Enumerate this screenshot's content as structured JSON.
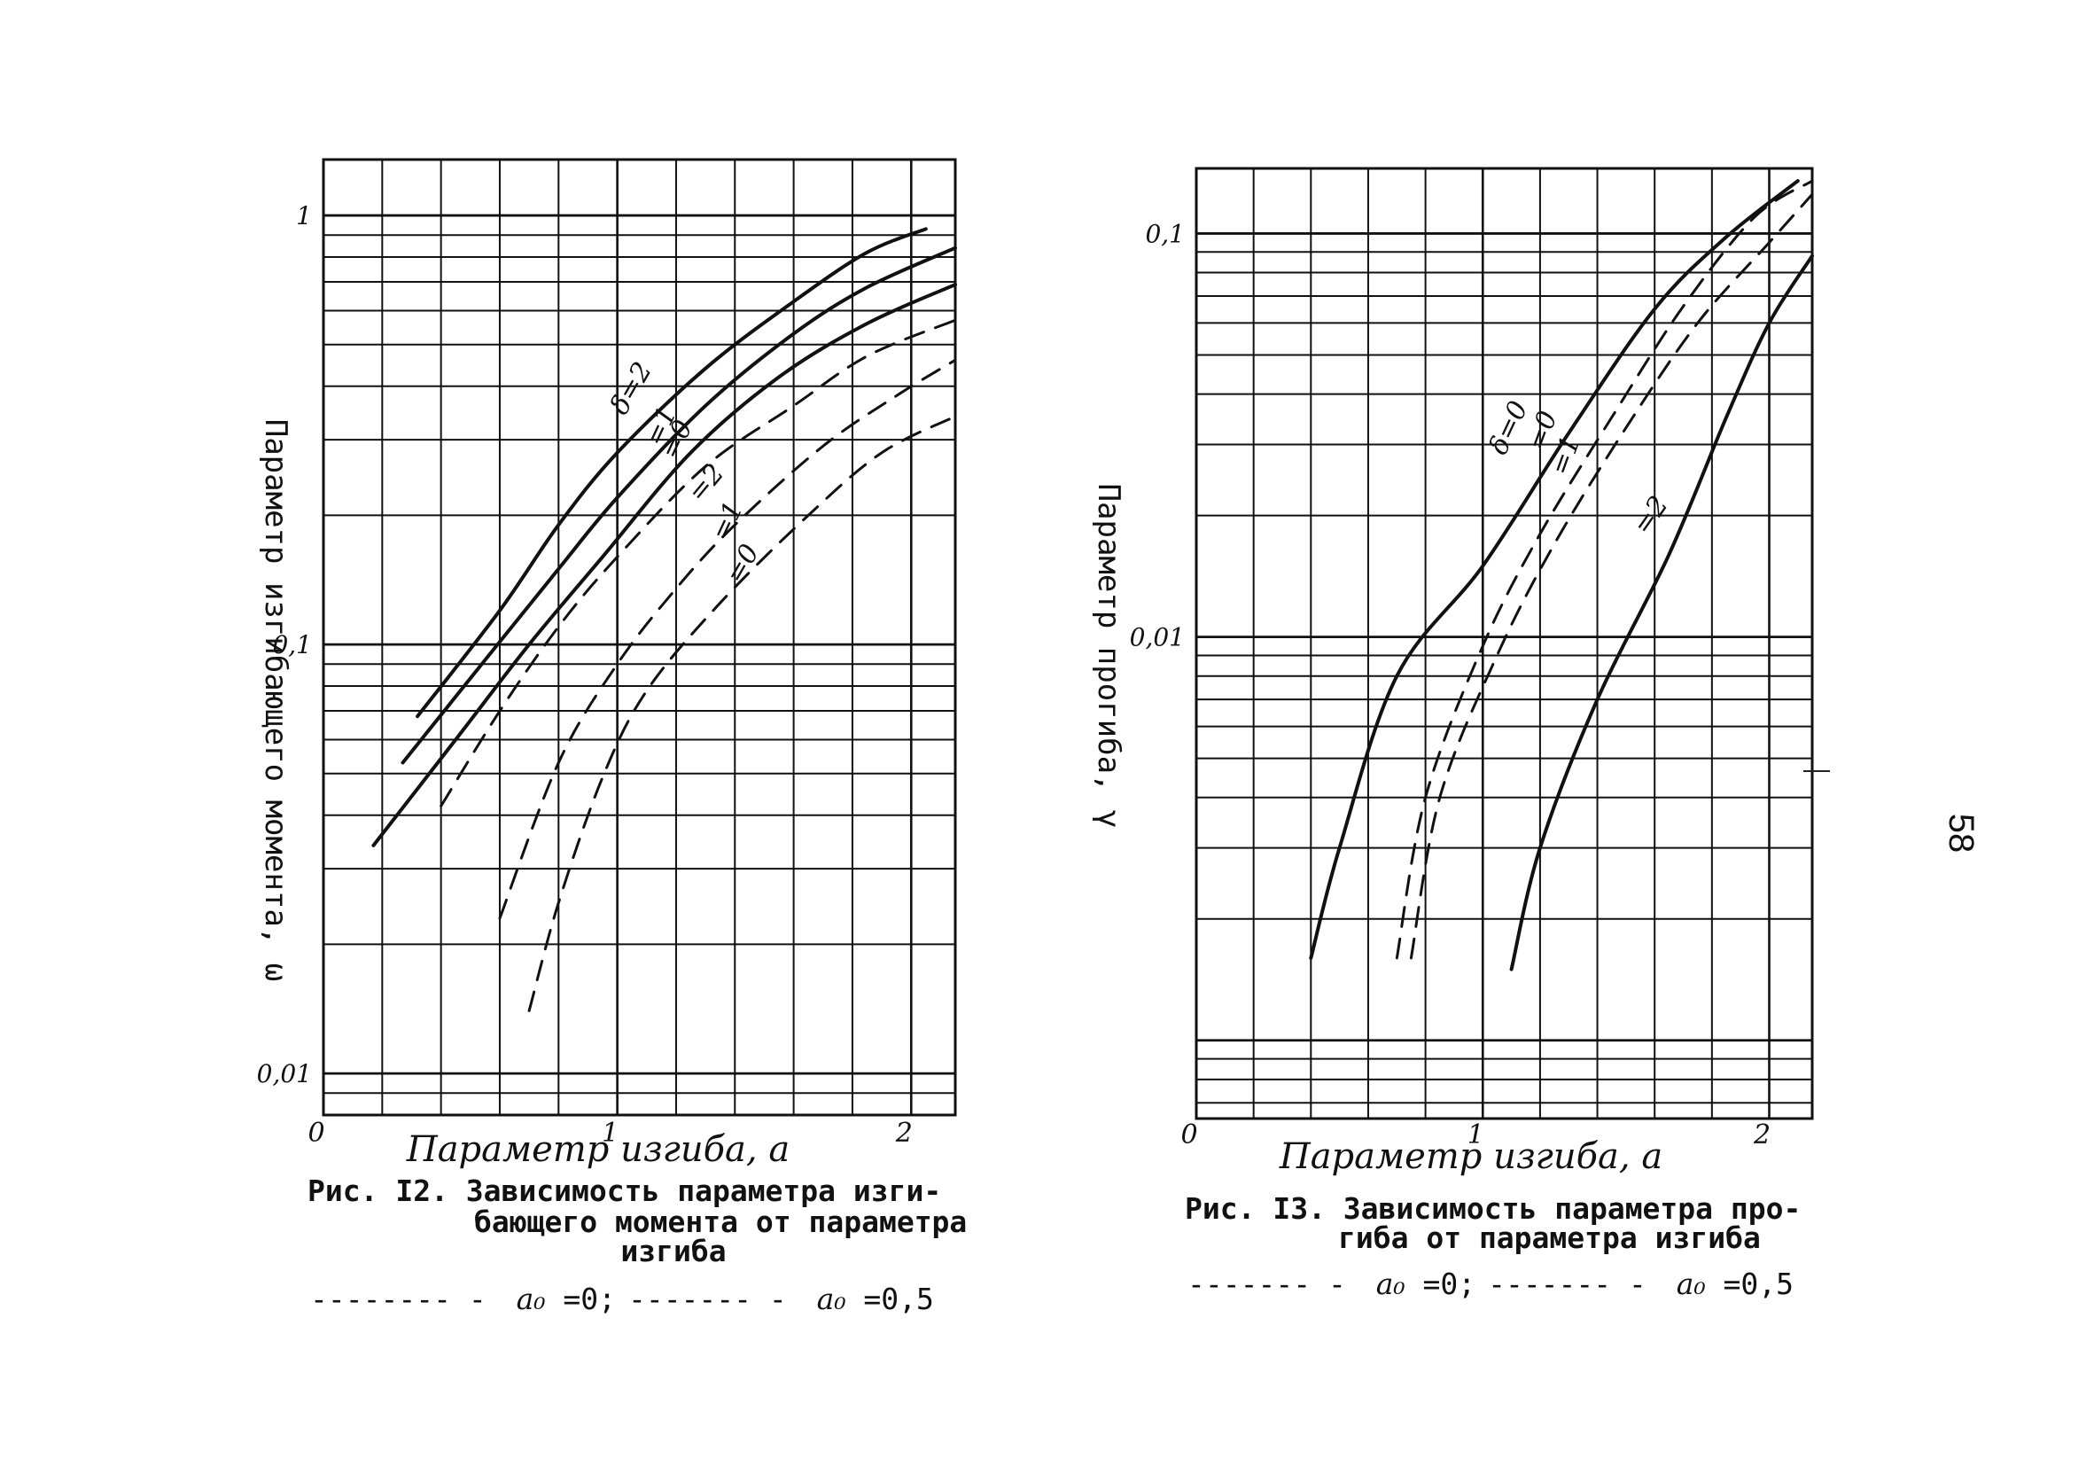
{
  "page_number": "58",
  "chart_data": [
    {
      "type": "line",
      "ylog": true,
      "xlim": [
        0,
        2.15
      ],
      "ylim": [
        0.008,
        1.35
      ],
      "ylabel": "Параметр изгибающего момента, ω",
      "xlabel": "Параметр изгиба, a",
      "x_ticks": [
        "0",
        "1",
        "2"
      ],
      "y_ticks": [
        "0,01",
        "0,1",
        "1"
      ],
      "caption_line1": "Рис. I2. Зависимость параметра изги-",
      "caption_line2": "бающего момента от параметра",
      "caption_line3": "изгиба",
      "legend": {
        "dash1": "--------",
        "sep1": " - ",
        "sym1": "a₀",
        "val1": " =0;",
        "dash2": "-------",
        "sep2": " - ",
        "sym2": "a₀",
        "val2": " =0,5"
      },
      "series": [
        {
          "label": "δ=2",
          "dash": false,
          "points": [
            [
              0.32,
              0.068
            ],
            [
              0.6,
              0.12
            ],
            [
              0.8,
              0.19
            ],
            [
              1.0,
              0.28
            ],
            [
              1.3,
              0.44
            ],
            [
              1.6,
              0.63
            ],
            [
              1.85,
              0.82
            ],
            [
              2.05,
              0.93
            ]
          ]
        },
        {
          "label": "=1",
          "dash": false,
          "points": [
            [
              0.27,
              0.053
            ],
            [
              0.55,
              0.092
            ],
            [
              0.8,
              0.15
            ],
            [
              1.0,
              0.22
            ],
            [
              1.3,
              0.36
            ],
            [
              1.6,
              0.53
            ],
            [
              1.85,
              0.68
            ],
            [
              2.15,
              0.84
            ]
          ]
        },
        {
          "label": "=0",
          "dash": false,
          "points": [
            [
              0.17,
              0.034
            ],
            [
              0.45,
              0.06
            ],
            [
              0.7,
              0.1
            ],
            [
              0.95,
              0.16
            ],
            [
              1.25,
              0.28
            ],
            [
              1.55,
              0.42
            ],
            [
              1.85,
              0.56
            ],
            [
              2.15,
              0.69
            ]
          ]
        },
        {
          "label": "=2",
          "dash": true,
          "points": [
            [
              0.4,
              0.042
            ],
            [
              0.6,
              0.07
            ],
            [
              0.8,
              0.11
            ],
            [
              1.0,
              0.16
            ],
            [
              1.3,
              0.26
            ],
            [
              1.6,
              0.36
            ],
            [
              1.85,
              0.47
            ],
            [
              2.15,
              0.57
            ]
          ]
        },
        {
          "label": "=1",
          "dash": true,
          "points": [
            [
              0.6,
              0.023
            ],
            [
              0.8,
              0.053
            ],
            [
              1.0,
              0.09
            ],
            [
              1.2,
              0.135
            ],
            [
              1.4,
              0.19
            ],
            [
              1.7,
              0.29
            ],
            [
              1.95,
              0.38
            ],
            [
              2.15,
              0.46
            ]
          ]
        },
        {
          "label": "=0",
          "dash": true,
          "points": [
            [
              0.7,
              0.014
            ],
            [
              0.8,
              0.025
            ],
            [
              0.95,
              0.049
            ],
            [
              1.1,
              0.078
            ],
            [
              1.35,
              0.125
            ],
            [
              1.65,
              0.2
            ],
            [
              1.9,
              0.28
            ],
            [
              2.15,
              0.34
            ]
          ]
        }
      ]
    },
    {
      "type": "line",
      "ylog": true,
      "xlim": [
        0,
        2.15
      ],
      "ylim": [
        0.00064,
        0.145
      ],
      "ylabel": "Параметр прогиба, γ",
      "xlabel": "Параметр изгиба, a",
      "x_ticks": [
        "0",
        "1",
        "2"
      ],
      "y_ticks": [
        "0,01",
        "0,1"
      ],
      "caption_line1": "Рис. I3. Зависимость параметра про-",
      "caption_line2": "гиба от параметра изгиба",
      "legend": {
        "dash1": "-------",
        "sep1": " - ",
        "sym1": "a₀",
        "val1": " =0;",
        "dash2": "-------",
        "sep2": " - ",
        "sym2": "a₀",
        "val2": " =0,5"
      },
      "series": [
        {
          "label": "δ=0",
          "dash": false,
          "points": [
            [
              0.4,
              0.0016
            ],
            [
              0.5,
              0.003
            ],
            [
              0.7,
              0.008
            ],
            [
              1.0,
              0.015
            ],
            [
              1.3,
              0.032
            ],
            [
              1.6,
              0.065
            ],
            [
              1.85,
              0.098
            ],
            [
              2.1,
              0.135
            ]
          ]
        },
        {
          "label": "=0",
          "dash": true,
          "points": [
            [
              0.7,
              0.0016
            ],
            [
              0.8,
              0.004
            ],
            [
              1.0,
              0.0095
            ],
            [
              1.2,
              0.018
            ],
            [
              1.45,
              0.035
            ],
            [
              1.7,
              0.066
            ],
            [
              1.95,
              0.11
            ],
            [
              2.15,
              0.135
            ]
          ]
        },
        {
          "label": "=1",
          "dash": true,
          "points": [
            [
              0.75,
              0.0016
            ],
            [
              0.85,
              0.004
            ],
            [
              1.05,
              0.009
            ],
            [
              1.25,
              0.017
            ],
            [
              1.5,
              0.033
            ],
            [
              1.75,
              0.06
            ],
            [
              2.0,
              0.095
            ],
            [
              2.15,
              0.125
            ]
          ]
        },
        {
          "label": "=2",
          "dash": false,
          "points": [
            [
              1.1,
              0.0015
            ],
            [
              1.2,
              0.003
            ],
            [
              1.4,
              0.007
            ],
            [
              1.65,
              0.016
            ],
            [
              1.85,
              0.035
            ],
            [
              2.0,
              0.06
            ],
            [
              2.15,
              0.088
            ]
          ]
        }
      ]
    }
  ]
}
